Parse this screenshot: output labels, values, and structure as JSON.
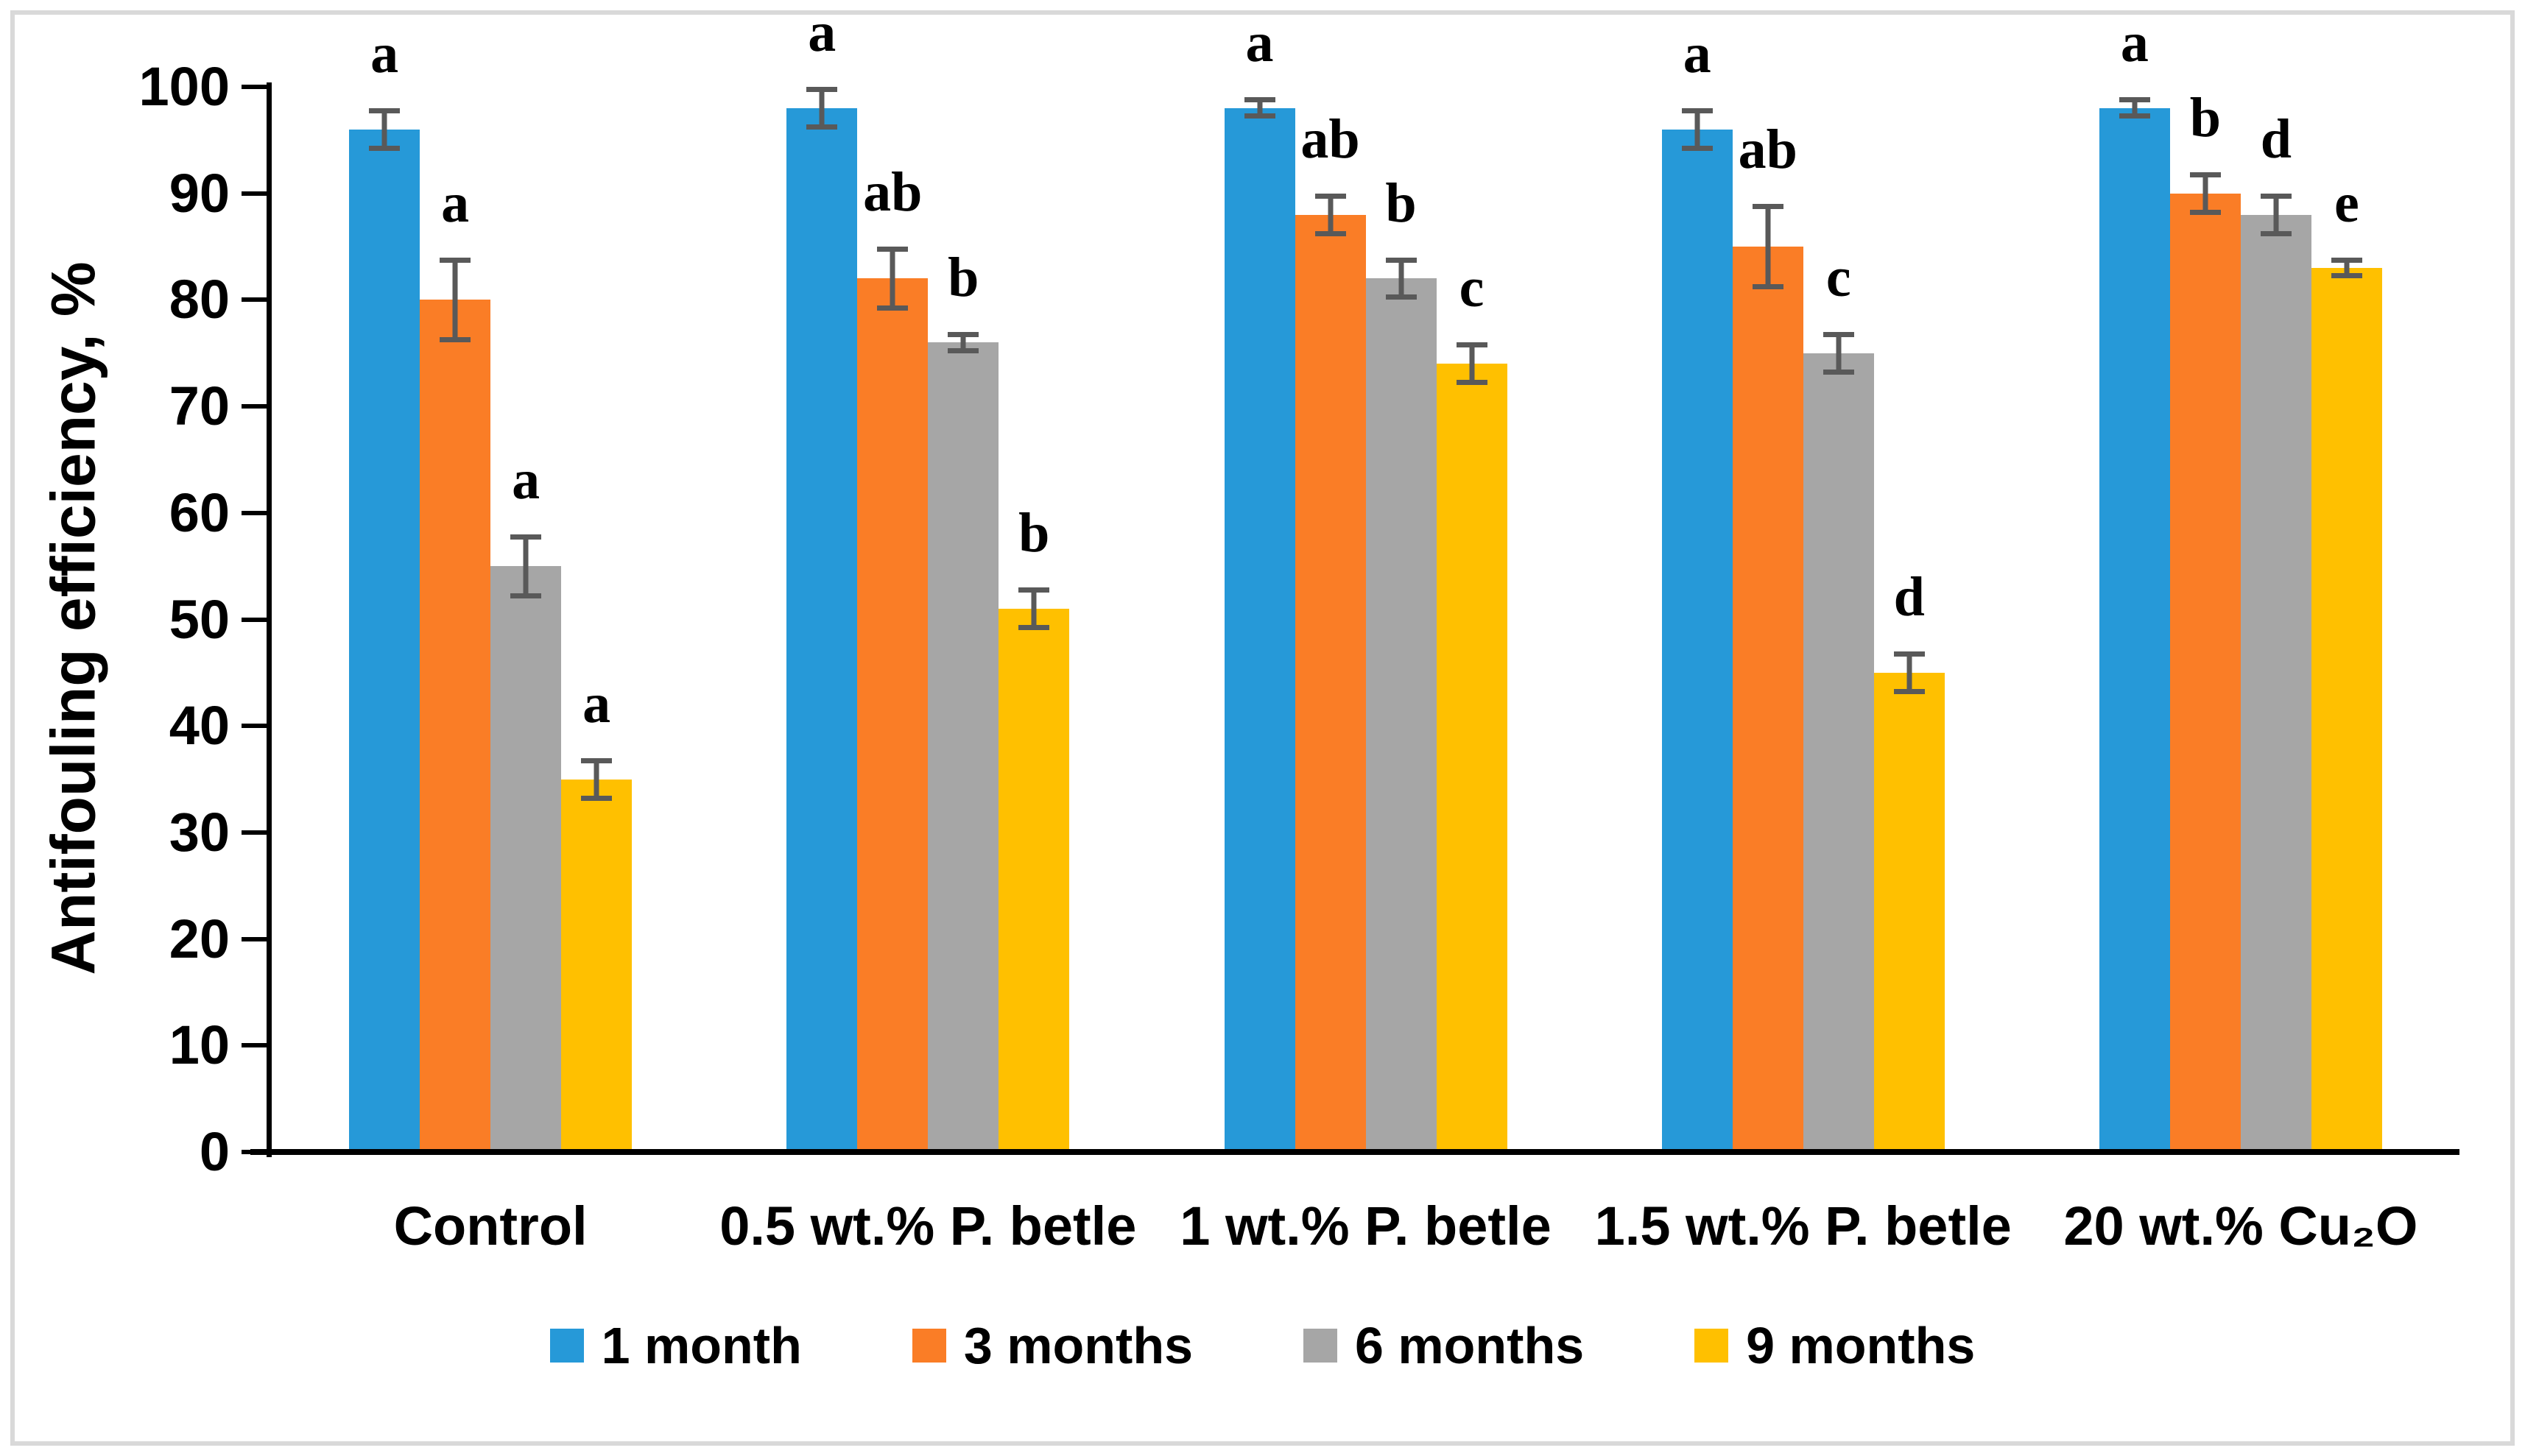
{
  "figure": {
    "border_color": "#d9d9d9",
    "background": "#ffffff",
    "axis_color": "#000000",
    "text_color": "#000000"
  },
  "chart_data": {
    "type": "bar",
    "title": "",
    "xlabel": "",
    "ylabel": "Antifouling efficiency, %",
    "ylim": [
      0,
      100
    ],
    "ytick_step": 10,
    "yticks": [
      0,
      10,
      20,
      30,
      40,
      50,
      60,
      70,
      80,
      90,
      100
    ],
    "grid": false,
    "legend_position": "bottom",
    "error_bar_color": "#595959",
    "categories": [
      "Control",
      "0.5 wt.% P. betle",
      "1 wt.% P. betle",
      "1.5 wt.% P. betle",
      "20 wt.% Cu₂O"
    ],
    "series": [
      {
        "name": "1 month",
        "color": "#2699d8",
        "values": [
          96,
          98,
          98,
          96,
          98
        ],
        "errors": [
          2,
          2,
          1,
          2,
          1
        ],
        "letters": [
          "a",
          "a",
          "a",
          "a",
          "a"
        ]
      },
      {
        "name": "3 months",
        "color": "#fa7d26",
        "values": [
          80,
          82,
          88,
          85,
          90
        ],
        "errors": [
          4,
          3,
          2,
          4,
          2
        ],
        "letters": [
          "a",
          "ab",
          "ab",
          "ab",
          "b"
        ]
      },
      {
        "name": "6 months",
        "color": "#a6a6a6",
        "values": [
          55,
          76,
          82,
          75,
          88
        ],
        "errors": [
          3,
          1,
          2,
          2,
          2
        ],
        "letters": [
          "a",
          "b",
          "b",
          "c",
          "d"
        ]
      },
      {
        "name": "9 months",
        "color": "#ffc000",
        "values": [
          35,
          51,
          74,
          45,
          83
        ],
        "errors": [
          2,
          2,
          2,
          2,
          1
        ],
        "letters": [
          "a",
          "b",
          "c",
          "d",
          "e"
        ]
      }
    ]
  }
}
